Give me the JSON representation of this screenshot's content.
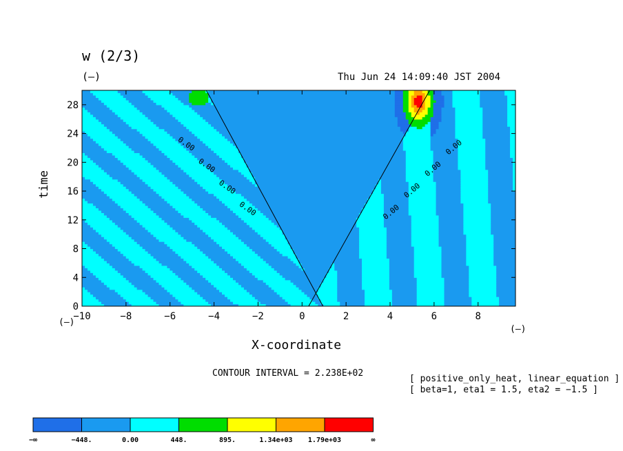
{
  "header": {
    "title": "w (2/3)",
    "units": "(—)",
    "timestamp": "Thu Jun 24 14:09:40 JST 2004"
  },
  "chart_data": {
    "type": "contour",
    "variable": "w (2/3)",
    "xlabel": "X-coordinate",
    "ylabel": "time",
    "x_units": "(—)",
    "y_units": "(—)",
    "xlim": [
      -10,
      9.7
    ],
    "ylim": [
      0,
      30
    ],
    "xticks": [
      -10,
      -8,
      -6,
      -4,
      -2,
      0,
      2,
      4,
      6,
      8
    ],
    "yticks": [
      0,
      4,
      8,
      12,
      16,
      20,
      24,
      28
    ],
    "contour_interval": "CONTOUR INTERVAL = 2.238E+02",
    "contour_label": "0.00",
    "features": [
      {
        "name": "left-moving front",
        "x_at_t0": 0.6,
        "x_at_t30": -4.7
      },
      {
        "name": "right-moving front",
        "x_at_t0": 0.6,
        "x_at_t30": 6.1
      },
      {
        "name": "peak region",
        "x": 5.3,
        "t": 28.5,
        "max_level": "1.79e+03"
      }
    ],
    "colorbar": {
      "levels": [
        "−∞",
        "−448.",
        "0.00",
        "448.",
        "895.",
        "1.34e+03",
        "1.79e+03",
        "∞"
      ],
      "colors": [
        "#1f6fe8",
        "#1a9af0",
        "#00ffff",
        "#00dd00",
        "#ffff00",
        "#ffa500",
        "#ff0000"
      ]
    },
    "annotation": [
      "[ positive_only_heat, linear_equation ]",
      "[ beta=1, eta1 = 1.5, eta2 = −1.5 ]"
    ]
  }
}
